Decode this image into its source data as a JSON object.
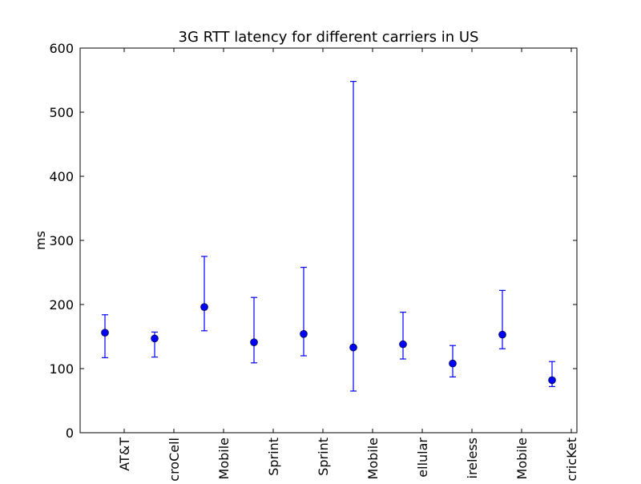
{
  "chart_data": {
    "type": "scatter",
    "title": "3G RTT latency for different carriers in US",
    "xlabel": "",
    "ylabel": "ms",
    "ylim": [
      0,
      600
    ],
    "yticks": [
      0,
      100,
      200,
      300,
      400,
      500,
      600
    ],
    "grid": false,
    "categories": [
      "AT&T",
      "croCell",
      "Mobile",
      "Sprint",
      "Sprint",
      "Mobile",
      "ellular",
      "ireless",
      "Mobile",
      "cricKet"
    ],
    "series": [
      {
        "color": "#0000ff",
        "values": [
          156,
          147,
          196,
          141,
          154,
          133,
          138,
          108,
          153,
          82
        ],
        "error_low": [
          117,
          118,
          159,
          109,
          120,
          65,
          115,
          87,
          131,
          72
        ],
        "error_high": [
          184,
          157,
          275,
          211,
          258,
          548,
          188,
          136,
          222,
          111
        ]
      }
    ]
  }
}
